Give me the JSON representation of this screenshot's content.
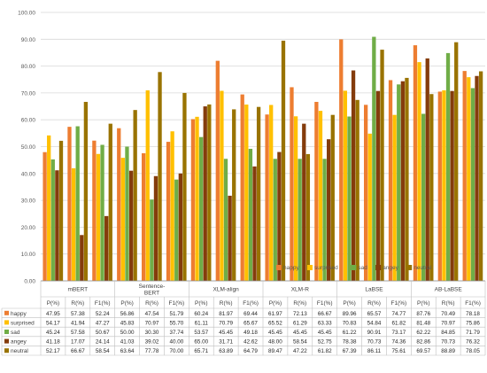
{
  "chart_data": {
    "type": "bar",
    "title": "",
    "xlabel": "",
    "ylabel": "",
    "ylim": [
      0,
      100
    ],
    "y_ticks": [
      "0.00",
      "10.00",
      "20.00",
      "30.00",
      "40.00",
      "50.00",
      "60.00",
      "70.00",
      "80.00",
      "90.00",
      "100.00"
    ],
    "grid": true,
    "legend_position": "bottom-right",
    "groups": [
      "mBERT",
      "Sentence-BERT",
      "XLM-align",
      "XLM-R",
      "LaBSE",
      "AB-LaBSE"
    ],
    "metrics": [
      "P(%)",
      "R(%)",
      "F1(%)"
    ],
    "categories": [
      "P(%)",
      "R(%)",
      "F1(%)",
      "P(%)",
      "R(%)",
      "F1(%)",
      "P(%)",
      "R(%)",
      "F1(%)",
      "P(%)",
      "R(%)",
      "F1(%)",
      "P(%)",
      "R(%)",
      "F1(%)",
      "P(%)",
      "R(%)",
      "F1(%)"
    ],
    "series": [
      {
        "name": "happy",
        "color": "#ED7D31",
        "values": [
          "47.95",
          "57.38",
          "52.24",
          "56.86",
          "47.54",
          "51.79",
          "60.24",
          "81.97",
          "69.44",
          "61.97",
          "72.13",
          "66.67",
          "89.96",
          "65.57",
          "74.77",
          "87.76",
          "70.49",
          "78.18"
        ]
      },
      {
        "name": "surprised",
        "color": "#FFC000",
        "values": [
          "54.17",
          "41.94",
          "47.27",
          "45.83",
          "70.97",
          "55.70",
          "61.11",
          "70.79",
          "65.67",
          "65.52",
          "61.29",
          "63.33",
          "70.83",
          "54.84",
          "61.82",
          "81.48",
          "70.97",
          "75.86"
        ]
      },
      {
        "name": "sad",
        "color": "#70AD47",
        "values": [
          "45.24",
          "57.58",
          "50.67",
          "50.00",
          "30.30",
          "37.74",
          "53.57",
          "45.45",
          "49.18",
          "45.45",
          "45.45",
          "45.45",
          "61.22",
          "90.91",
          "73.17",
          "62.22",
          "84.85",
          "71.79"
        ]
      },
      {
        "name": "angey",
        "color": "#843C0C",
        "values": [
          "41.18",
          "17.07",
          "24.14",
          "41.03",
          "39.02",
          "40.00",
          "65.00",
          "31.71",
          "42.62",
          "48.00",
          "58.54",
          "52.75",
          "78.38",
          "70.73",
          "74.36",
          "82.86",
          "70.73",
          "76.32"
        ]
      },
      {
        "name": "neutral",
        "color": "#997300",
        "values": [
          "52.17",
          "66.67",
          "58.54",
          "63.64",
          "77.78",
          "70.00",
          "65.71",
          "63.89",
          "64.79",
          "89.47",
          "47.22",
          "61.82",
          "67.39",
          "86.11",
          "75.61",
          "69.57",
          "88.89",
          "78.05"
        ]
      }
    ]
  }
}
